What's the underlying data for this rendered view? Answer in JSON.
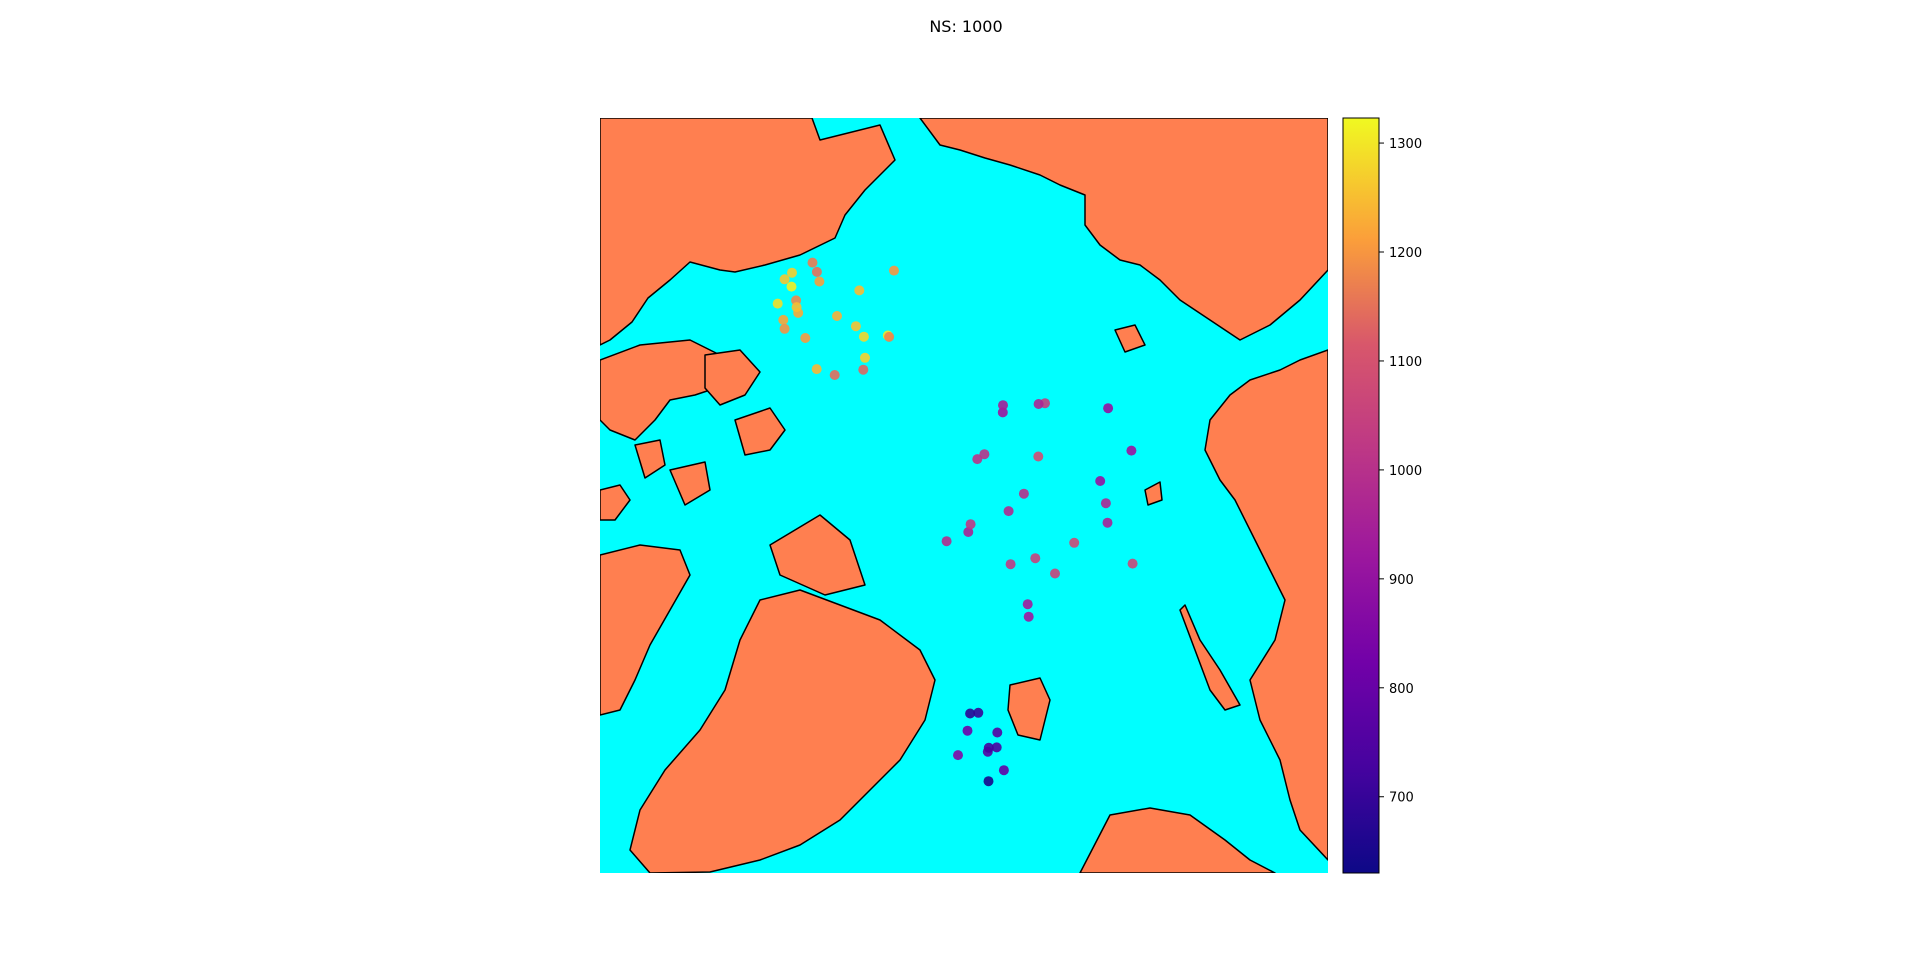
{
  "title": "NS: 1000",
  "map": {
    "projection": "north-polar-stereographic",
    "ocean_color": "#00ffff",
    "land_color": "#ff7f50",
    "coast_color": "#000000"
  },
  "colorbar": {
    "colormap": "plasma",
    "range": [
      630,
      1323
    ],
    "tick_labels": [
      "700",
      "800",
      "900",
      "1000",
      "1100",
      "1200",
      "1300"
    ],
    "tick_values": [
      700,
      800,
      900,
      1000,
      1100,
      1200,
      1300
    ]
  },
  "chart_data": {
    "type": "scatter",
    "title": "NS: 1000",
    "value_range": [
      630,
      1323
    ],
    "groups": [
      {
        "name": "",
        "values": [
          1290,
          1255,
          1220,
          1300,
          1270,
          1240,
          1210,
          1180,
          1150,
          1260,
          1230,
          1200,
          1280,
          1245,
          1195,
          1165,
          1135,
          1225,
          1310,
          1275,
          1205,
          1175,
          1145,
          1250
        ]
      },
      {
        "name": "",
        "values": [
          1010,
          1040,
          1075,
          980,
          955,
          920,
          905,
          960,
          990,
          1020,
          1050,
          1085,
          935,
          900,
          915,
          965,
          1000,
          1030,
          1060,
          945,
          925,
          970,
          1005,
          1070
        ]
      },
      {
        "name": "",
        "values": [
          860,
          820,
          790,
          760,
          740,
          700,
          680,
          650,
          760,
          720
        ]
      }
    ]
  }
}
